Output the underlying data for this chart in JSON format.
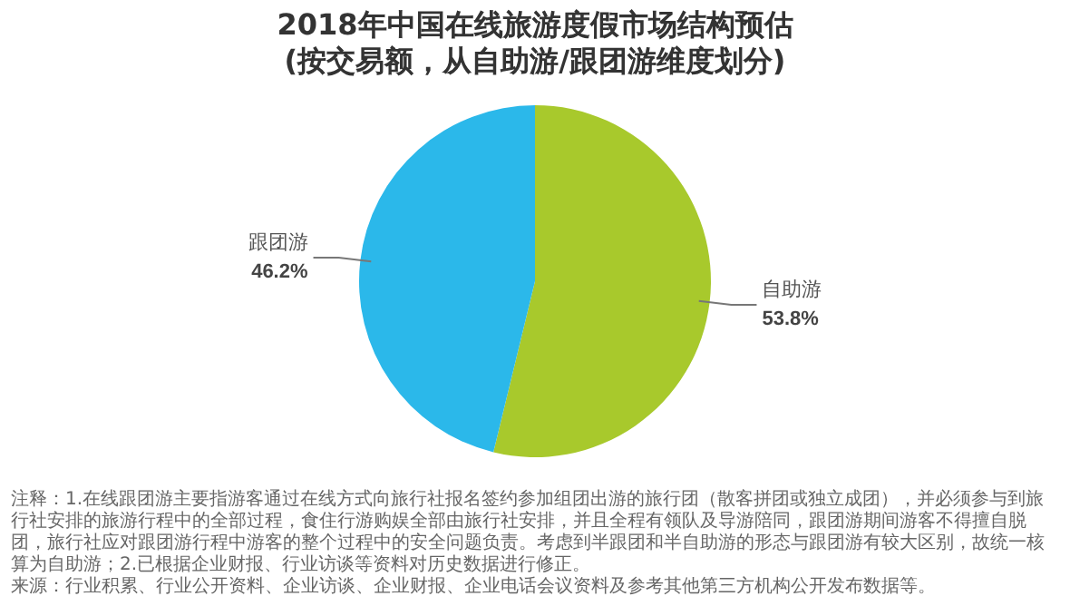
{
  "chart_data": {
    "type": "pie",
    "title": "2018年中国在线旅游度假市场结构预估\n(按交易额，从自助游/跟团游维度划分)",
    "categories": [
      "自助游",
      "跟团游"
    ],
    "values": [
      53.8,
      46.2
    ],
    "value_labels": [
      "53.8%",
      "46.2%"
    ],
    "colors": [
      "#a8c92c",
      "#2bb8ea"
    ],
    "legend": false,
    "annotations": [
      "注释：1.在线跟团游主要指游客通过在线方式向旅行社报名签约参加组团出游的旅行团（散客拼团或独立成团），并必须参与到旅行社安排的旅游行程中的全部过程，食住行游购娱全部由旅行社安排，并且全程有领队及导游陪同，跟团游期间游客不得擅自脱团，旅行社应对跟团游行程中游客的整个过程中的安全问题负责。考虑到半跟团和半自助游的形态与跟团游有较大区别，故统一核算为自助游；2.已根据企业财报、行业访谈等资料对历史数据进行修正。",
      "来源：行业积累、行业公开资料、企业访谈、企业财报、企业电话会议资料及参考其他第三方机构公开发布数据等。"
    ]
  }
}
